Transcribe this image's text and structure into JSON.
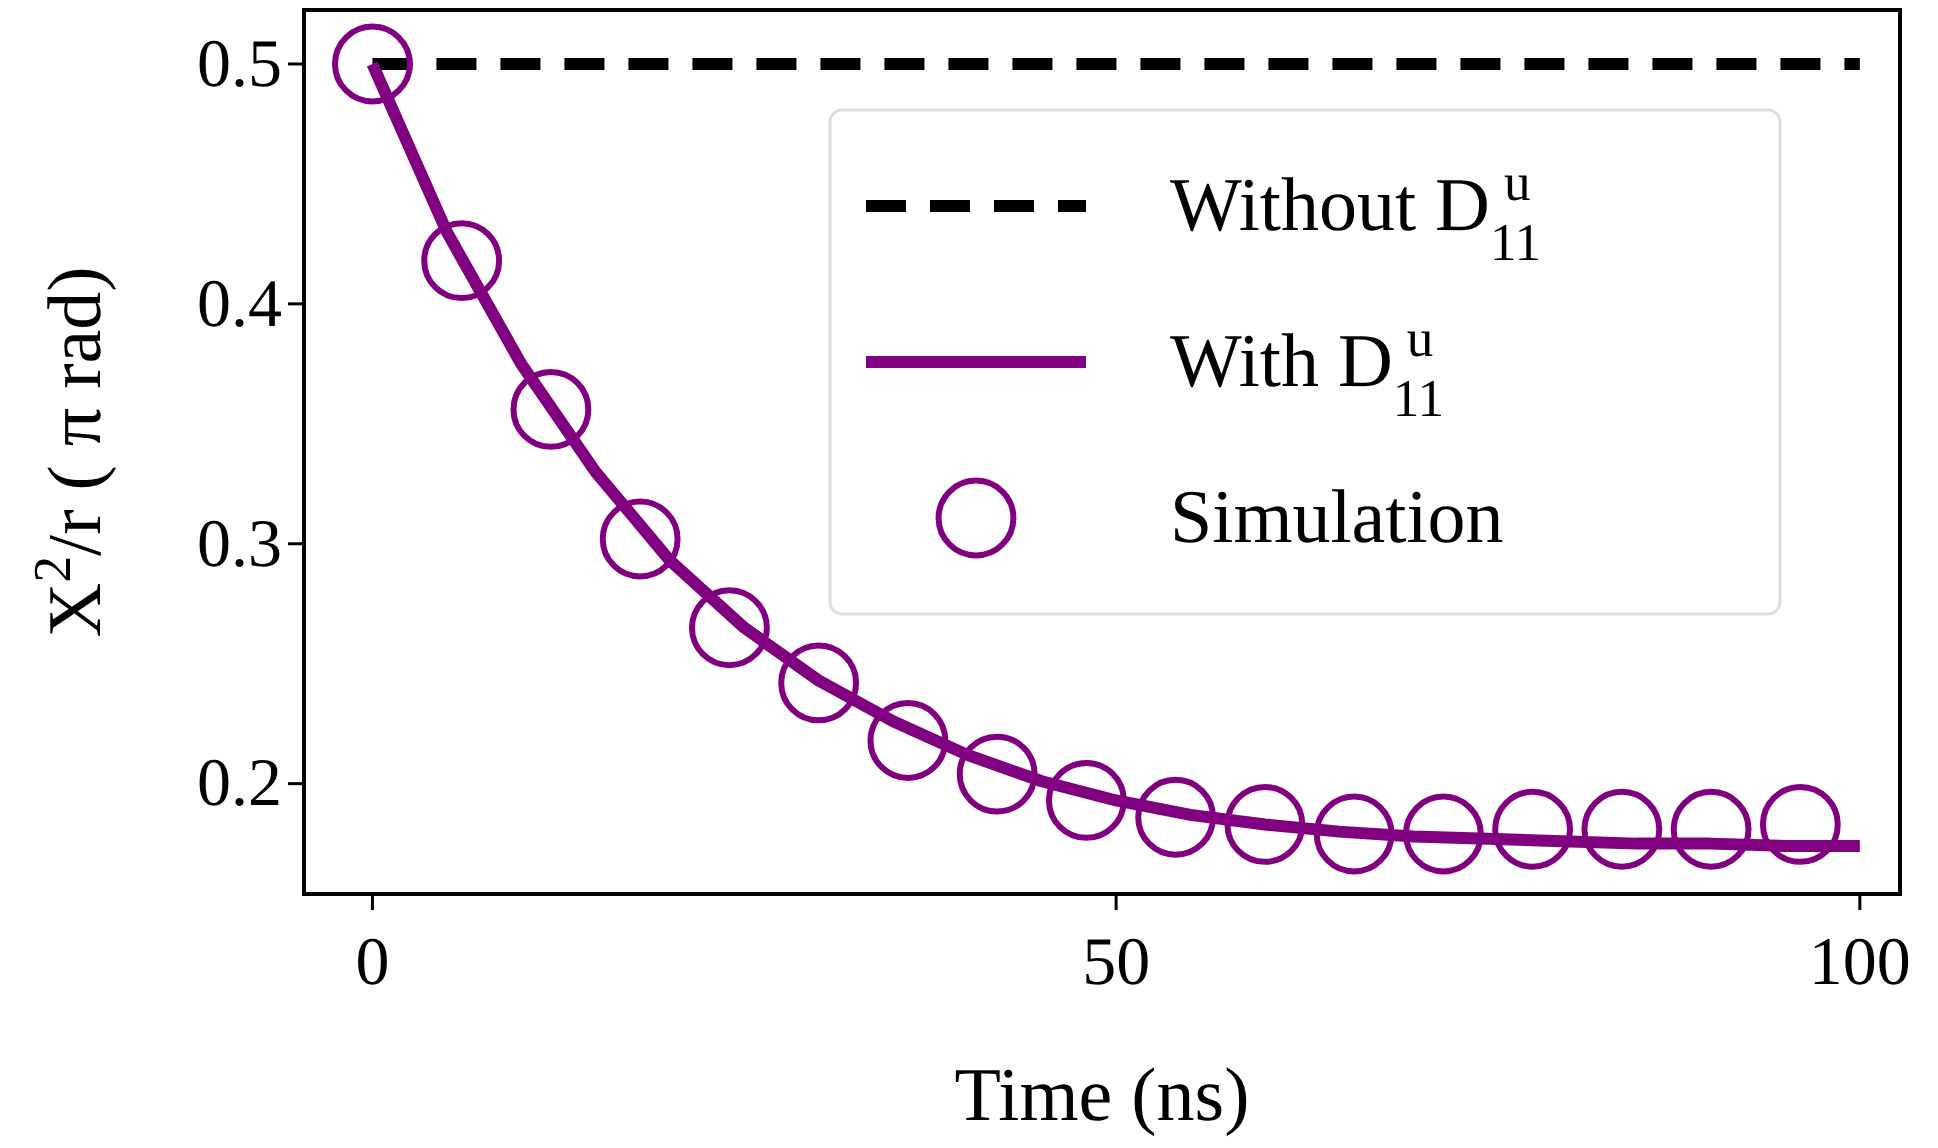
{
  "chart_data": {
    "type": "line",
    "xlabel": "Time (ns)",
    "ylabel": "X$^{2}$/r ( π rad)",
    "xlim": [
      -4.6,
      102.7
    ],
    "ylim": [
      0.154,
      0.5225
    ],
    "xticks": [
      0,
      50,
      100
    ],
    "yticks": [
      0.2,
      0.3,
      0.4,
      0.5
    ],
    "grid": false,
    "legend": "top right",
    "series": [
      {
        "name": "Without D$_{11}$$^{u}$",
        "line_style": "dashed",
        "marker": "none",
        "color": "#000000",
        "x": [
          0,
          100
        ],
        "values": [
          0.5,
          0.5
        ]
      },
      {
        "name": "With D$_{11}$$^{u}$",
        "line_style": "solid",
        "marker": "none",
        "color": "#800080",
        "x": [
          0,
          5,
          10,
          15,
          20,
          25,
          30,
          35,
          40,
          45,
          50,
          55,
          60,
          65,
          70,
          75,
          80,
          85,
          90,
          95,
          100
        ],
        "values": [
          0.5,
          0.43,
          0.375,
          0.33,
          0.293,
          0.265,
          0.243,
          0.226,
          0.212,
          0.201,
          0.193,
          0.187,
          0.183,
          0.18,
          0.178,
          0.177,
          0.176,
          0.175,
          0.175,
          0.174,
          0.174
        ]
      },
      {
        "name": "Simulation",
        "type": "scatter",
        "marker": "circle",
        "color": "#800080",
        "x": [
          0,
          6,
          12,
          18,
          24,
          30,
          36,
          42,
          48,
          54,
          60,
          66,
          72,
          78,
          84,
          90,
          96
        ],
        "values": [
          0.5,
          0.418,
          0.356,
          0.302,
          0.265,
          0.242,
          0.218,
          0.204,
          0.193,
          0.186,
          0.183,
          0.179,
          0.179,
          0.181,
          0.181,
          0.181,
          0.183
        ]
      }
    ]
  }
}
